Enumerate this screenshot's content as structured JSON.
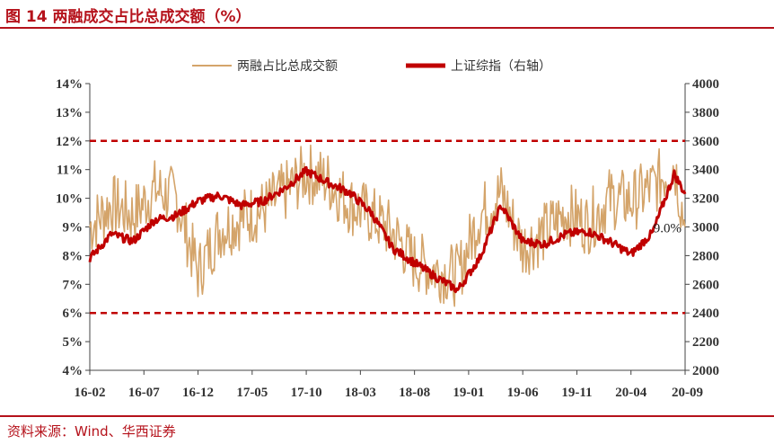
{
  "header": {
    "title": "图 14 两融成交占比总成交额（%）"
  },
  "footer": {
    "source": "资料来源：Wind、华西证券"
  },
  "colors": {
    "brand": "#b5121b",
    "margin_series": "#d4a46a",
    "index_series": "#c00000",
    "ref_line": "#c00000"
  },
  "chart_data": {
    "type": "line",
    "legend_position": "top-center",
    "grid": false,
    "x_axis": {
      "ticks": [
        "16-02",
        "16-07",
        "16-12",
        "17-05",
        "17-10",
        "18-03",
        "18-08",
        "19-01",
        "19-06",
        "19-11",
        "20-04",
        "20-09"
      ]
    },
    "y_left": {
      "range": [
        4,
        14
      ],
      "ticks": [
        "4%",
        "5%",
        "6%",
        "7%",
        "8%",
        "9%",
        "10%",
        "11%",
        "12%",
        "13%",
        "14%"
      ]
    },
    "y_right": {
      "range": [
        2000,
        4000
      ],
      "ticks": [
        "2000",
        "2200",
        "2400",
        "2600",
        "2800",
        "3000",
        "3200",
        "3400",
        "3600",
        "3800",
        "4000"
      ]
    },
    "reference_lines": [
      {
        "axis": "left",
        "value": 12
      },
      {
        "axis": "left",
        "value": 6
      }
    ],
    "annotation": {
      "text": "9.0%",
      "x": "20-09",
      "y": 9.0
    },
    "series": [
      {
        "name": "两融占比总成交额",
        "axis": "left",
        "x": [
          "16-02",
          "16-04",
          "16-06",
          "16-08",
          "16-10",
          "16-12",
          "17-02",
          "17-04",
          "17-06",
          "17-08",
          "17-10",
          "17-12",
          "18-02",
          "18-04",
          "18-06",
          "18-08",
          "18-10",
          "18-12",
          "19-02",
          "19-04",
          "19-06",
          "19-08",
          "19-10",
          "19-12",
          "20-02",
          "20-04",
          "20-06",
          "20-08",
          "20-09"
        ],
        "values": [
          9.0,
          9.8,
          9.4,
          10.3,
          10.0,
          7.4,
          8.9,
          9.3,
          9.6,
          10.2,
          10.9,
          10.6,
          9.8,
          9.4,
          8.8,
          7.8,
          7.5,
          7.3,
          9.4,
          10.2,
          8.3,
          8.8,
          9.5,
          9.1,
          10.0,
          9.9,
          10.4,
          11.2,
          9.0
        ]
      },
      {
        "name": "上证综指（右轴）",
        "axis": "right",
        "x": [
          "16-02",
          "16-04",
          "16-06",
          "16-08",
          "16-10",
          "16-12",
          "17-02",
          "17-04",
          "17-06",
          "17-08",
          "17-10",
          "17-12",
          "18-02",
          "18-04",
          "18-06",
          "18-08",
          "18-10",
          "18-12",
          "19-02",
          "19-04",
          "19-06",
          "19-08",
          "19-10",
          "19-12",
          "20-02",
          "20-04",
          "20-06",
          "20-08",
          "20-09"
        ],
        "values": [
          2780,
          2950,
          2900,
          3050,
          3080,
          3180,
          3220,
          3150,
          3180,
          3270,
          3390,
          3310,
          3240,
          3100,
          2850,
          2750,
          2650,
          2560,
          2780,
          3150,
          2900,
          2880,
          2950,
          2970,
          2900,
          2810,
          2960,
          3370,
          3230
        ]
      }
    ]
  }
}
